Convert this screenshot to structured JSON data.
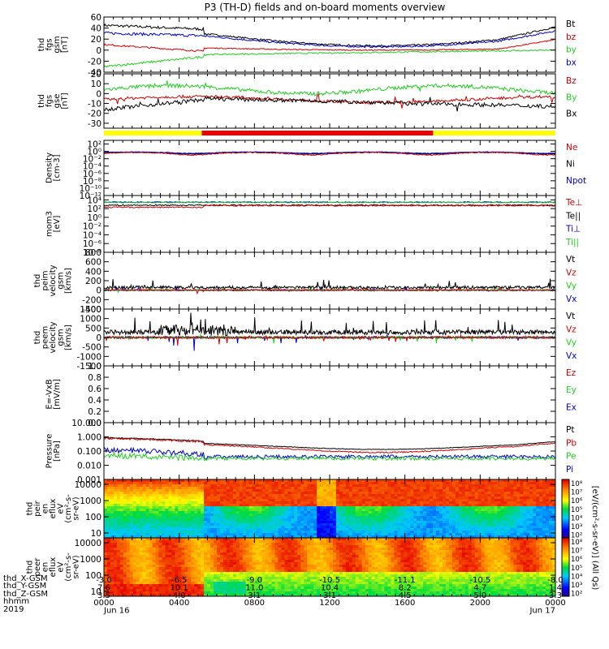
{
  "title": "P3 (TH-D) fields and on-board moments overview",
  "colors": {
    "black": "#000000",
    "red": "#cc0000",
    "green": "#22cc22",
    "blue": "#0000cc",
    "yellow": "#ffff00",
    "barred": "#ee0000"
  },
  "panels": [
    {
      "id": "fgs-gsm",
      "ylabel": [
        "thd",
        "fgs",
        "gsm",
        "[nT]"
      ],
      "scale": "linear",
      "ylim": [
        -40,
        60
      ],
      "ticks": [
        "-40",
        "-20",
        "0",
        "20",
        "40",
        "60"
      ],
      "tick_values": [
        -40,
        -20,
        0,
        20,
        40,
        60
      ],
      "legend": [
        {
          "text": "Bt",
          "color": "#000000"
        },
        {
          "text": "bz",
          "color": "#cc0000"
        },
        {
          "text": "by",
          "color": "#22cc22"
        },
        {
          "text": "bx",
          "color": "#0000cc"
        }
      ]
    },
    {
      "id": "fgs-gse",
      "ylabel": [
        "thd",
        "fgs",
        "gse",
        "[nT]"
      ],
      "scale": "linear",
      "ylim": [
        -35,
        20
      ],
      "ticks": [
        "-30",
        "-20",
        "-10",
        "0",
        "10",
        "20"
      ],
      "tick_values": [
        -30,
        -20,
        -10,
        0,
        10,
        20
      ],
      "legend": [
        {
          "text": "Bz",
          "color": "#cc0000"
        },
        {
          "text": "By",
          "color": "#22cc22"
        },
        {
          "text": "Bx",
          "color": "#000000"
        }
      ]
    },
    {
      "id": "density",
      "ylabel": [
        "Density",
        "[cm-3]"
      ],
      "scale": "log",
      "ylim": [
        1e-12,
        1000
      ],
      "ticks": [
        "10²",
        "10⁰",
        "10⁻²",
        "10⁻⁴",
        "10⁻⁶",
        "10⁻⁸",
        "10⁻¹⁰",
        "10⁻¹²"
      ],
      "tick_values": [
        100,
        1,
        0.01,
        0.0001,
        1e-06,
        1e-08,
        1e-10,
        1e-12
      ],
      "legend": [
        {
          "text": "Ne",
          "color": "#cc0000"
        },
        {
          "text": "Ni",
          "color": "#000000"
        },
        {
          "text": "Npot",
          "color": "#0000cc"
        }
      ]
    },
    {
      "id": "temperature",
      "ylabel": [
        "mom3",
        "[eV]"
      ],
      "scale": "log",
      "ylim": [
        1e-08,
        100000
      ],
      "ticks": [
        "10⁴",
        "10²",
        "10⁰",
        "10⁻²",
        "10⁻⁴",
        "10⁻⁶",
        "10⁻⁸"
      ],
      "tick_values": [
        10000,
        100,
        1,
        0.01,
        0.0001,
        1e-06,
        1e-08
      ],
      "legend": [
        {
          "text": "Te⊥",
          "color": "#cc0000"
        },
        {
          "text": "Te||",
          "color": "#000000"
        },
        {
          "text": "Ti⊥",
          "color": "#0000cc"
        },
        {
          "text": "Ti||",
          "color": "#22cc22"
        }
      ]
    },
    {
      "id": "peim-velocity",
      "ylabel": [
        "thd",
        "peim",
        "velocity",
        "gsm",
        "[km/s]"
      ],
      "scale": "linear",
      "ylim": [
        -400,
        800
      ],
      "ticks": [
        "-400",
        "-200",
        "0",
        "200",
        "400",
        "600",
        "800"
      ],
      "tick_values": [
        -400,
        -200,
        0,
        200,
        400,
        600,
        800
      ],
      "legend": [
        {
          "text": "Vt",
          "color": "#000000"
        },
        {
          "text": "Vz",
          "color": "#cc0000"
        },
        {
          "text": "Vy",
          "color": "#22cc22"
        },
        {
          "text": "Vx",
          "color": "#0000cc"
        }
      ]
    },
    {
      "id": "peem-velocity",
      "ylabel": [
        "thd",
        "peem",
        "velocity",
        "gsm",
        "[km/s]"
      ],
      "scale": "linear",
      "ylim": [
        -1500,
        1500
      ],
      "ticks": [
        "-1500",
        "-1000",
        "-500",
        "0",
        "500",
        "1000",
        "1500"
      ],
      "tick_values": [
        -1500,
        -1000,
        -500,
        0,
        500,
        1000,
        1500
      ],
      "legend": [
        {
          "text": "Vt",
          "color": "#000000"
        },
        {
          "text": "Vz",
          "color": "#cc0000"
        },
        {
          "text": "Vy",
          "color": "#22cc22"
        },
        {
          "text": "Vx",
          "color": "#0000cc"
        }
      ]
    },
    {
      "id": "efield",
      "ylabel": [
        "E=-VxB",
        "[mV/m]"
      ],
      "scale": "linear",
      "ylim": [
        0,
        1
      ],
      "ticks": [
        "0.0",
        "0.2",
        "0.4",
        "0.6",
        "0.8",
        "1.0"
      ],
      "tick_values": [
        0,
        0.2,
        0.4,
        0.6,
        0.8,
        1.0
      ],
      "legend": [
        {
          "text": "Ez",
          "color": "#cc0000"
        },
        {
          "text": "Ey",
          "color": "#22cc22"
        },
        {
          "text": "Ex",
          "color": "#0000cc"
        }
      ]
    },
    {
      "id": "pressure",
      "ylabel": [
        "Pressure",
        "[nPa]"
      ],
      "scale": "log",
      "ylim": [
        0.001,
        10
      ],
      "ticks": [
        "0.001",
        "0.010",
        "0.100",
        "1.000",
        "10.000"
      ],
      "tick_values": [
        0.001,
        0.01,
        0.1,
        1,
        10
      ],
      "legend": [
        {
          "text": "Pt",
          "color": "#000000"
        },
        {
          "text": "Pb",
          "color": "#cc0000"
        },
        {
          "text": "Pe",
          "color": "#22cc22"
        },
        {
          "text": "Pi",
          "color": "#0000cc"
        }
      ]
    },
    {
      "id": "peir-spec",
      "ylabel": [
        "thd",
        "peir",
        "en",
        "eflux",
        "eV",
        "(cm²-s-",
        "sr-eV)"
      ],
      "scale": "log",
      "ylim": [
        5,
        20000
      ],
      "ticks": [
        "10",
        "100",
        "1000",
        "10000"
      ],
      "tick_values": [
        10,
        100,
        1000,
        10000
      ]
    },
    {
      "id": "peer-spec",
      "ylabel": [
        "thd",
        "peer",
        "en",
        "eflux",
        "eV",
        "(cm²-s-",
        "sr-eV)"
      ],
      "scale": "log",
      "ylim": [
        5,
        20000
      ],
      "ticks": [
        "10",
        "100",
        "1000",
        "10000"
      ],
      "tick_values": [
        10,
        100,
        1000,
        10000
      ]
    }
  ],
  "colorbars": [
    {
      "ticks": [
        "10⁸",
        "10⁷",
        "10⁶",
        "10⁵",
        "10⁴",
        "10³",
        "10²"
      ]
    },
    {
      "ticks": [
        "10⁸",
        "10⁷",
        "10⁶",
        "10⁵",
        "10⁴",
        "10³",
        "10²"
      ]
    }
  ],
  "colorbar_label": "[eV/(cm²-s-sr-eV)] (All Qs)",
  "bottom_rows": [
    {
      "name": "thd_X-GSM",
      "values": [
        "-3.0",
        "-6.5",
        "-9.0",
        "-10.5",
        "-11.1",
        "-10.5",
        "-8.0"
      ]
    },
    {
      "name": "thd_Y-GSM",
      "values": [
        "7.6",
        "10.1",
        "11.0",
        "10.4",
        "8.2",
        "4.7",
        "1.4"
      ]
    },
    {
      "name": "thd_Z-GSM",
      "values": [
        "3.5",
        "4.0",
        "3.1",
        "3.1",
        "4.5",
        "5.0",
        "3.3"
      ]
    },
    {
      "name": "hhmm",
      "values": [
        "0000",
        "0400",
        "0800",
        "1200",
        "1600",
        "2000",
        "0000"
      ]
    },
    {
      "name": "2019",
      "values": [
        "Jun 16",
        "",
        "",
        "",
        "",
        "",
        "Jun 17"
      ]
    }
  ],
  "mode_bar": {
    "colors": [
      "yellow",
      "red",
      "yellow"
    ],
    "segments_hours": [
      [
        0,
        5.2,
        "yellow"
      ],
      [
        5.2,
        17.5,
        "red"
      ],
      [
        17.5,
        24,
        "yellow"
      ]
    ]
  },
  "x_hours": [
    0,
    4,
    8,
    12,
    16,
    20,
    24
  ]
}
